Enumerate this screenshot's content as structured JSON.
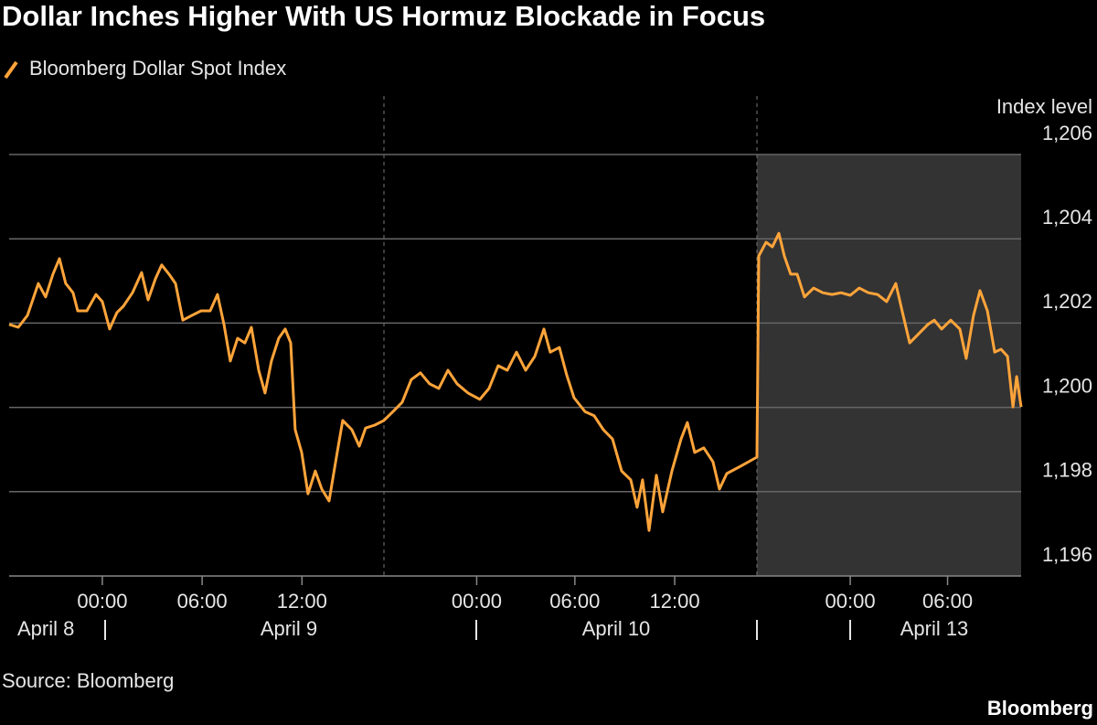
{
  "chart_data": {
    "type": "line",
    "title": "Dollar Inches Higher With US Hormuz Blockade in Focus",
    "y_axis_label": "Index level",
    "source": "Source: Bloomberg",
    "brand": "Bloomberg",
    "date_labels": [
      "April 8",
      "April 9",
      "April 10",
      "April 13"
    ],
    "xlim": [
      -5.6,
      55.22
    ],
    "xticks": [
      {
        "value": 0,
        "label": "00:00"
      },
      {
        "value": 6,
        "label": "06:00"
      },
      {
        "value": 12,
        "label": "12:00"
      },
      {
        "value": 22.5,
        "label": "00:00"
      },
      {
        "value": 28.4,
        "label": "06:00"
      },
      {
        "value": 34.4,
        "label": "12:00"
      },
      {
        "value": 44.95,
        "label": "00:00"
      },
      {
        "value": 50.8,
        "label": "06:00"
      }
    ],
    "ylim": [
      1196,
      1206
    ],
    "yticks": [
      {
        "value": 1196,
        "label": "1,196"
      },
      {
        "value": 1198,
        "label": "1,198"
      },
      {
        "value": 1200,
        "label": "1,200"
      },
      {
        "value": 1202,
        "label": "1,202"
      },
      {
        "value": 1204,
        "label": "1,204"
      },
      {
        "value": 1206,
        "label": "1,206"
      }
    ],
    "grid": true,
    "x": [
      -5.6,
      -5.05,
      -4.5,
      -3.85,
      -3.41,
      -2.97,
      -2.58,
      -2.2,
      -1.76,
      -1.48,
      -0.93,
      -0.38,
      0,
      0.44,
      0.88,
      1.26,
      1.81,
      2.36,
      2.75,
      3.19,
      3.57,
      4.01,
      4.4,
      4.84,
      5.38,
      5.93,
      6.48,
      6.92,
      7.31,
      7.69,
      8.13,
      8.57,
      8.96,
      9.4,
      9.78,
      10.16,
      10.6,
      10.99,
      11.32,
      11.59,
      11.98,
      12.36,
      12.8,
      13.19,
      13.63,
      14.07,
      14.45,
      15,
      15.44,
      15.82,
      16.37,
      16.92,
      17.47,
      18.02,
      18.57,
      19.12,
      19.67,
      20.22,
      20.77,
      21.32,
      21.98,
      22.69,
      23.24,
      23.79,
      24.34,
      24.89,
      25.44,
      25.99,
      26.54,
      26.92,
      27.47,
      27.91,
      28.35,
      29.01,
      29.56,
      30.11,
      30.66,
      31.21,
      31.76,
      32.14,
      32.47,
      32.86,
      33.3,
      33.68,
      34.23,
      34.78,
      35.16,
      35.6,
      36.15,
      36.7,
      37.09,
      37.53,
      38.35,
      39.34,
      39.45,
      39.89,
      40.27,
      40.66,
      40.99,
      41.37,
      41.76,
      42.2,
      42.75,
      43.3,
      43.85,
      44.4,
      44.95,
      45.49,
      46.04,
      46.59,
      47.14,
      47.69,
      48.13,
      48.52,
      49.07,
      49.62,
      50,
      50.44,
      50.99,
      51.54,
      51.92,
      52.36,
      52.75,
      53.19,
      53.63,
      54.01,
      54.4,
      54.73,
      54.95,
      55.22
    ],
    "series": [
      {
        "name": "Bloomberg Dollar Spot Index",
        "color": "#ffa43a",
        "values": [
          1201.97,
          1201.9,
          1202.18,
          1202.94,
          1202.62,
          1203.16,
          1203.53,
          1202.94,
          1202.72,
          1202.29,
          1202.29,
          1202.68,
          1202.51,
          1201.86,
          1202.25,
          1202.4,
          1202.72,
          1203.2,
          1202.55,
          1203.05,
          1203.38,
          1203.16,
          1202.94,
          1202.07,
          1202.18,
          1202.29,
          1202.29,
          1202.68,
          1201.97,
          1201.1,
          1201.64,
          1201.53,
          1201.9,
          1200.88,
          1200.34,
          1201.1,
          1201.64,
          1201.86,
          1201.53,
          1199.47,
          1198.93,
          1197.95,
          1198.49,
          1198.06,
          1197.78,
          1198.82,
          1199.69,
          1199.47,
          1199.08,
          1199.51,
          1199.58,
          1199.69,
          1199.9,
          1200.12,
          1200.66,
          1200.82,
          1200.56,
          1200.45,
          1200.88,
          1200.56,
          1200.34,
          1200.19,
          1200.45,
          1200.99,
          1200.88,
          1201.31,
          1200.88,
          1201.21,
          1201.86,
          1201.31,
          1201.42,
          1200.77,
          1200.23,
          1199.9,
          1199.8,
          1199.47,
          1199.25,
          1198.49,
          1198.28,
          1197.63,
          1198.28,
          1197.08,
          1198.39,
          1197.52,
          1198.49,
          1199.25,
          1199.64,
          1198.93,
          1199.04,
          1198.71,
          1198.06,
          1198.43,
          1198.6,
          1198.82,
          1203.59,
          1203.92,
          1203.81,
          1204.13,
          1203.59,
          1203.16,
          1203.16,
          1202.62,
          1202.83,
          1202.72,
          1202.68,
          1202.72,
          1202.66,
          1202.83,
          1202.72,
          1202.68,
          1202.51,
          1202.94,
          1202.18,
          1201.53,
          1201.75,
          1201.97,
          1202.07,
          1201.86,
          1202.07,
          1201.86,
          1201.16,
          1202.18,
          1202.77,
          1202.29,
          1201.31,
          1201.38,
          1201.21,
          1200.01,
          1200.73,
          1200.01
        ]
      }
    ]
  }
}
